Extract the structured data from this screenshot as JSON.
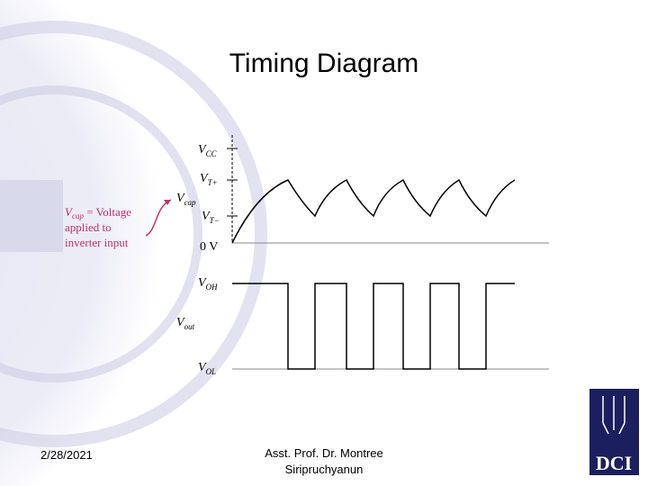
{
  "title": "Timing Diagram",
  "diagram": {
    "labels": {
      "vcc": {
        "main": "V",
        "sub": "CC"
      },
      "vtplus": {
        "main": "V",
        "sub": "T+"
      },
      "vcap": {
        "main": "V",
        "sub": "cap"
      },
      "vtminus": {
        "main": "V",
        "sub": "T−"
      },
      "zero": "0 V",
      "voh": {
        "main": "V",
        "sub": "OH"
      },
      "vout": {
        "main": "V",
        "sub": "out"
      },
      "vol": {
        "main": "V",
        "sub": "OL"
      }
    },
    "annotation": {
      "main": "V",
      "sub": "cap",
      "rest": " = Voltage",
      "line2": "applied to",
      "line3": "inverter input"
    }
  },
  "footer": {
    "date": "2/28/2021",
    "author_line1": "Asst. Prof. Dr. Montree",
    "author_line2": "Siripruchyanun"
  },
  "logo": "DCI"
}
